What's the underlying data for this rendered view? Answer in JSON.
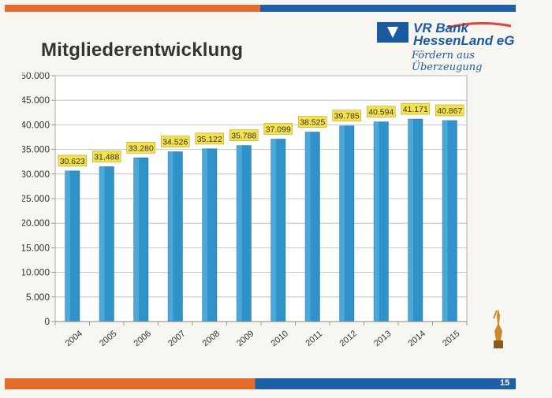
{
  "slide": {
    "title": "Mitgliederentwicklung",
    "page_number": "15",
    "logo_line1": "VR Bank",
    "logo_line2": "HessenLand eG",
    "logo_slogan": "Fördern aus Überzeugung",
    "colors": {
      "orange": "#e36b2c",
      "blue": "#1f5fa6",
      "bar": "#2f93c9",
      "label_bg": "#f4e24c"
    }
  },
  "chart_data": {
    "type": "bar",
    "title": "",
    "xlabel": "",
    "ylabel": "",
    "categories": [
      "2004",
      "2005",
      "2006",
      "2007",
      "2008",
      "2009",
      "2010",
      "2011",
      "2012",
      "2013",
      "2014",
      "2015"
    ],
    "values": [
      30623,
      31488,
      33280,
      34526,
      35122,
      35788,
      37099,
      38525,
      39785,
      40594,
      41171,
      40867
    ],
    "data_labels": [
      "30.623",
      "31.488",
      "33.280",
      "34.526",
      "35.122",
      "35.788",
      "37.099",
      "38.525",
      "39.785",
      "40.594",
      "41.171",
      "40.867"
    ],
    "ylim": [
      0,
      50000
    ],
    "yticks": [
      0,
      5000,
      10000,
      15000,
      20000,
      25000,
      30000,
      35000,
      40000,
      45000,
      50000
    ],
    "ytick_labels": [
      "0",
      "5.000",
      "10.000",
      "15.000",
      "20.000",
      "25.000",
      "30.000",
      "35.000",
      "40.000",
      "45.000",
      "50.000"
    ],
    "grid": true
  }
}
